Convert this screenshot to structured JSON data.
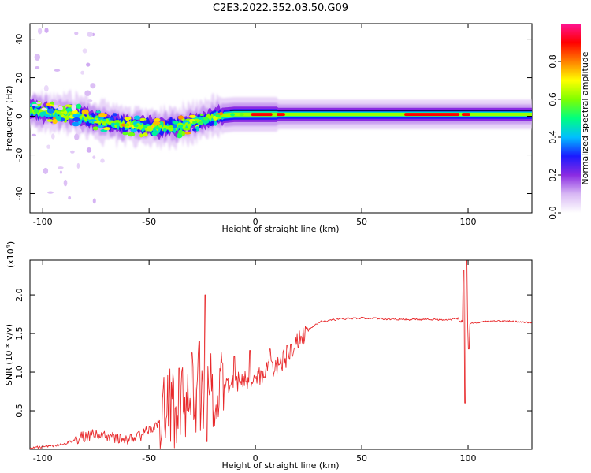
{
  "figure": {
    "title": "C2E3.2022.352.03.50.G09"
  },
  "chart_data": [
    {
      "type": "heatmap",
      "title": "C2E3.2022.352.03.50.G09",
      "xlabel": "Height of straight line (km)",
      "ylabel": "Frequency (Hz)",
      "xlim": [
        -106,
        130
      ],
      "ylim": [
        -50,
        48
      ],
      "xticks": [
        -100,
        -50,
        0,
        50,
        100
      ],
      "yticks": [
        -40,
        -20,
        0,
        20,
        40
      ],
      "ytick_labels": [
        "-40",
        "-20",
        "0",
        "20",
        "40"
      ],
      "colorbar": {
        "label": "Normalized spectral amplitude",
        "range": [
          0,
          1
        ],
        "ticks": [
          0.0,
          0.2,
          0.4,
          0.6,
          0.8
        ],
        "tick_labels": [
          "0.0",
          "0.2",
          "0.4",
          "0.6",
          "0.8"
        ],
        "colormap": [
          "#ffffff",
          "#d8b8f4",
          "#8a2be2",
          "#1a1aff",
          "#00bfff",
          "#00ff7f",
          "#7fff00",
          "#ffff00",
          "#ff8000",
          "#ff0000",
          "#ff1493"
        ]
      },
      "ridge": {
        "x": [
          -106,
          -95,
          -85,
          -75,
          -65,
          -55,
          -45,
          -35,
          -25,
          -20,
          -10,
          0,
          10,
          20,
          50,
          80,
          95,
          100,
          130
        ],
        "freq_hz": [
          3,
          2,
          1,
          -2,
          -4,
          -5,
          -6,
          -5,
          -2,
          0,
          1,
          1,
          1,
          1,
          1,
          1,
          1,
          1,
          1
        ]
      }
    },
    {
      "type": "line",
      "xlabel": "Height of straight line (km)",
      "ylabel": "SNR (10 * v/v)",
      "y_multiplier_label": "(x10",
      "y_multiplier_exp": "4",
      "xlim": [
        -106,
        130
      ],
      "ylim": [
        0,
        2.45
      ],
      "xticks": [
        -100,
        -50,
        0,
        50,
        100
      ],
      "yticks": [
        0.5,
        1.0,
        1.5,
        2.0
      ],
      "ytick_labels": [
        "0.5",
        "1.0",
        "1.5",
        "2.0"
      ],
      "series": [
        {
          "color": "#e8292b",
          "points": [
            [
              -106,
              0.02
            ],
            [
              -100,
              0.03
            ],
            [
              -95,
              0.05
            ],
            [
              -90,
              0.07
            ],
            [
              -85,
              0.12
            ],
            [
              -80,
              0.17
            ],
            [
              -75,
              0.2
            ],
            [
              -70,
              0.17
            ],
            [
              -65,
              0.14
            ],
            [
              -60,
              0.13
            ],
            [
              -55,
              0.16
            ],
            [
              -50,
              0.25
            ],
            [
              -45,
              0.35
            ],
            [
              -40,
              0.5
            ],
            [
              -35,
              0.62
            ],
            [
              -30,
              0.7
            ],
            [
              -25,
              0.72
            ],
            [
              -22,
              0.75
            ],
            [
              -20,
              0.78
            ],
            [
              -15,
              0.82
            ],
            [
              -10,
              0.86
            ],
            [
              -5,
              0.9
            ],
            [
              0,
              0.94
            ],
            [
              5,
              1.0
            ],
            [
              10,
              1.08
            ],
            [
              15,
              1.2
            ],
            [
              20,
              1.38
            ],
            [
              25,
              1.55
            ],
            [
              30,
              1.65
            ],
            [
              40,
              1.69
            ],
            [
              50,
              1.7
            ],
            [
              60,
              1.69
            ],
            [
              70,
              1.68
            ],
            [
              80,
              1.68
            ],
            [
              90,
              1.68
            ],
            [
              95,
              1.69
            ],
            [
              100,
              1.63
            ],
            [
              110,
              1.66
            ],
            [
              120,
              1.66
            ],
            [
              130,
              1.64
            ]
          ],
          "spikes": [
            [
              -23.5,
              2.0
            ],
            [
              -22.8,
              0.1
            ],
            [
              -26.5,
              1.4
            ],
            [
              -30,
              1.25
            ],
            [
              -36,
              1.05
            ],
            [
              -15.5,
              1.12
            ],
            [
              -10,
              1.2
            ],
            [
              -2.5,
              1.28
            ],
            [
              7,
              1.3
            ],
            [
              15,
              1.35
            ],
            [
              97.8,
              2.32
            ],
            [
              98.6,
              0.6
            ],
            [
              99.4,
              2.44
            ],
            [
              100.2,
              1.3
            ]
          ]
        }
      ]
    }
  ]
}
